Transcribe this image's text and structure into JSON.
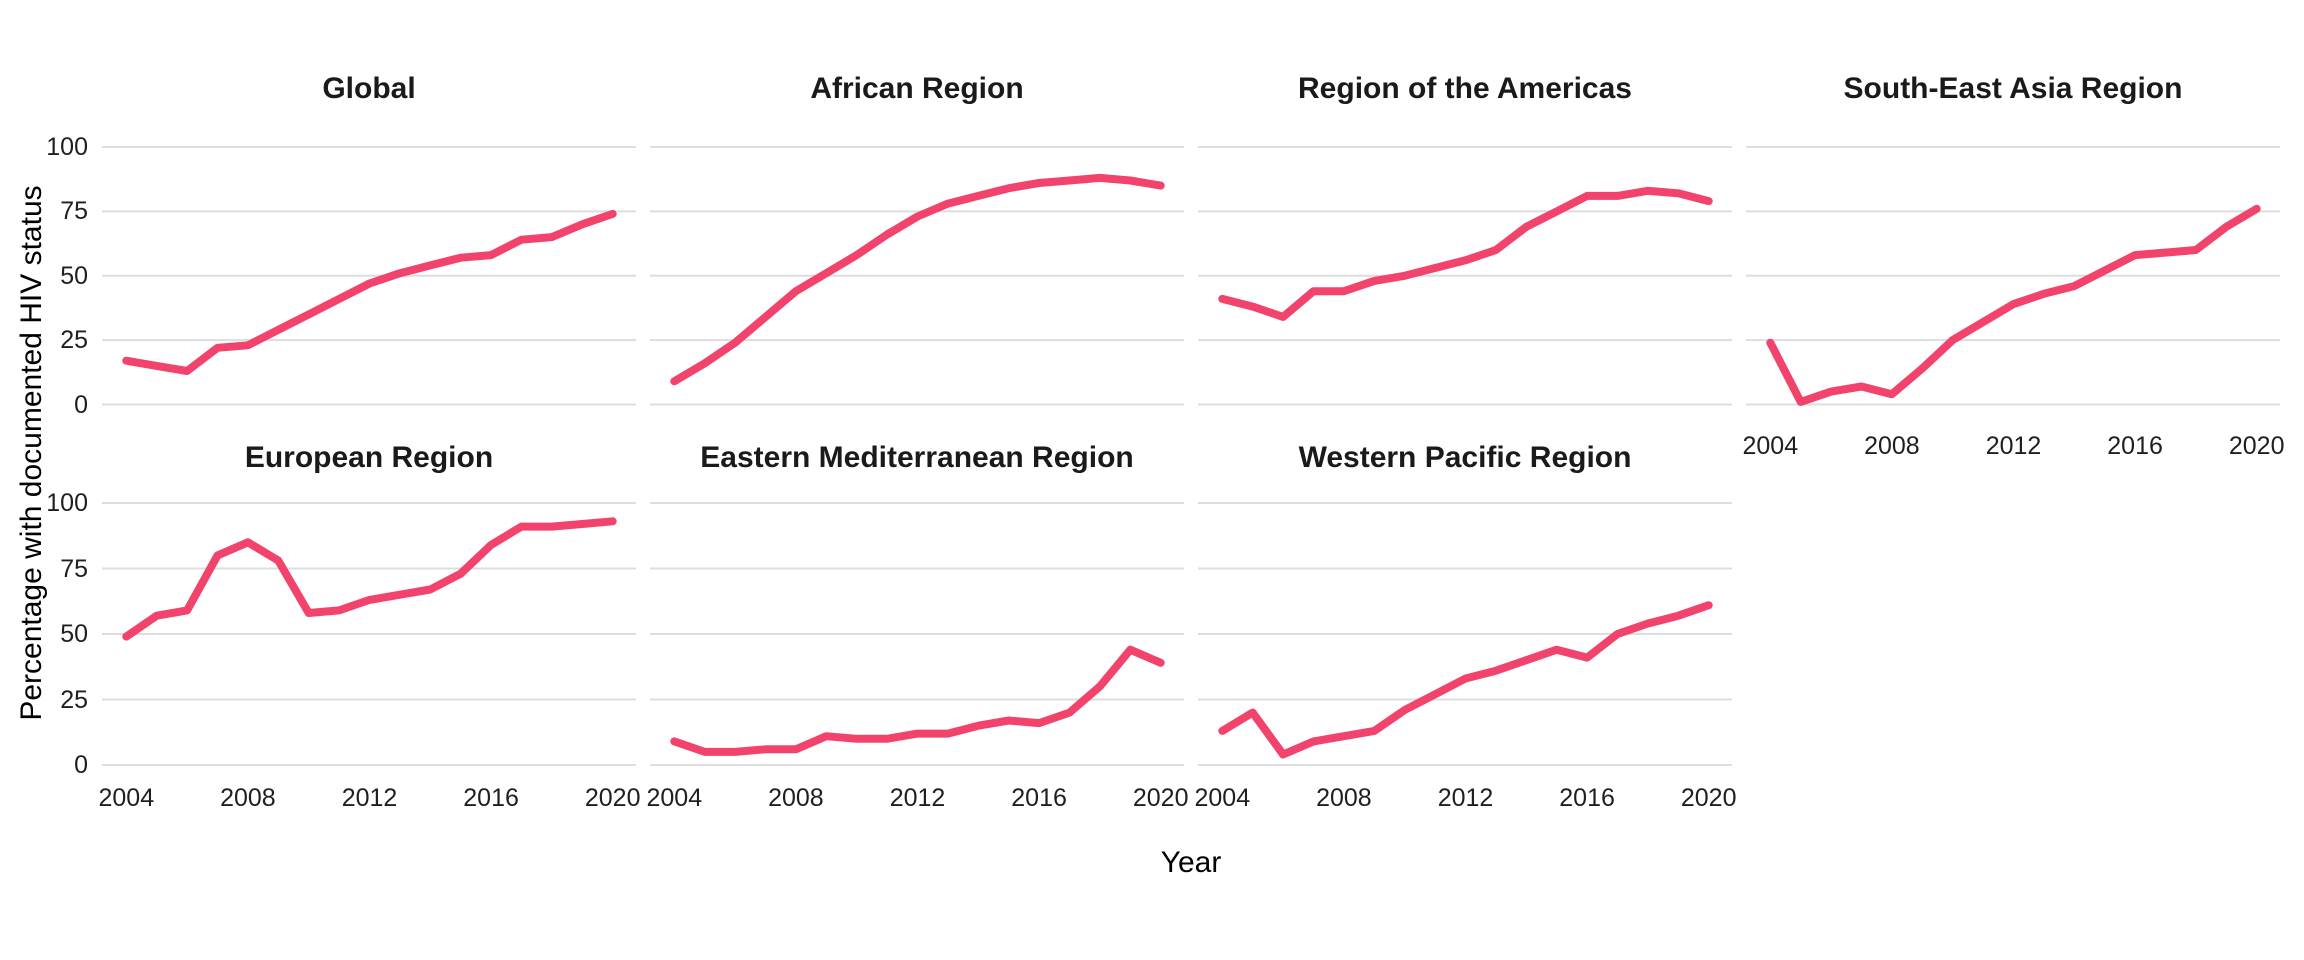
{
  "page": {
    "background": "#ffffff",
    "grid_color": "#dddddd",
    "text_color": "#1f1f1f"
  },
  "chart_data": {
    "type": "line",
    "title": "",
    "xlabel": "Year",
    "ylabel": "Percentage with documented HIV status",
    "x": [
      2004,
      2005,
      2006,
      2007,
      2008,
      2009,
      2010,
      2011,
      2012,
      2013,
      2014,
      2015,
      2016,
      2017,
      2018,
      2019,
      2020
    ],
    "x_tick_labels": [
      "2004",
      "2008",
      "2012",
      "2016",
      "2020"
    ],
    "x_tick_years": [
      2004,
      2008,
      2012,
      2016,
      2020
    ],
    "y_tick_labels": [
      "100",
      "75",
      "50",
      "25",
      "0"
    ],
    "y_tick_values": [
      100,
      75,
      50,
      25,
      0
    ],
    "ylim": [
      0,
      100
    ],
    "grid": "horizontal-only",
    "legend_position": "none",
    "line_color": "#F2436D",
    "series": [
      {
        "name": "Global",
        "values": [
          17,
          15,
          13,
          22,
          23,
          29,
          35,
          41,
          47,
          51,
          54,
          57,
          58,
          64,
          65,
          70,
          74
        ]
      },
      {
        "name": "African Region",
        "values": [
          9,
          16,
          24,
          34,
          44,
          51,
          58,
          66,
          73,
          78,
          81,
          84,
          86,
          87,
          88,
          87,
          85
        ]
      },
      {
        "name": "Region of the Americas",
        "values": [
          41,
          38,
          34,
          44,
          44,
          48,
          50,
          53,
          56,
          60,
          69,
          75,
          81,
          81,
          83,
          82,
          79
        ]
      },
      {
        "name": "South-East Asia Region",
        "values": [
          24,
          1,
          5,
          7,
          4,
          14,
          25,
          32,
          39,
          43,
          46,
          52,
          58,
          59,
          60,
          69,
          76
        ]
      },
      {
        "name": "European Region",
        "values": [
          49,
          57,
          59,
          80,
          85,
          78,
          58,
          59,
          63,
          65,
          67,
          73,
          84,
          91,
          91,
          92,
          93
        ]
      },
      {
        "name": "Eastern Mediterranean Region",
        "values": [
          9,
          5,
          5,
          6,
          6,
          11,
          10,
          10,
          12,
          12,
          15,
          17,
          16,
          20,
          30,
          44,
          39
        ]
      },
      {
        "name": "Western Pacific Region",
        "values": [
          13,
          20,
          4,
          9,
          11,
          13,
          21,
          27,
          33,
          36,
          40,
          44,
          41,
          50,
          54,
          57,
          61
        ]
      }
    ]
  }
}
